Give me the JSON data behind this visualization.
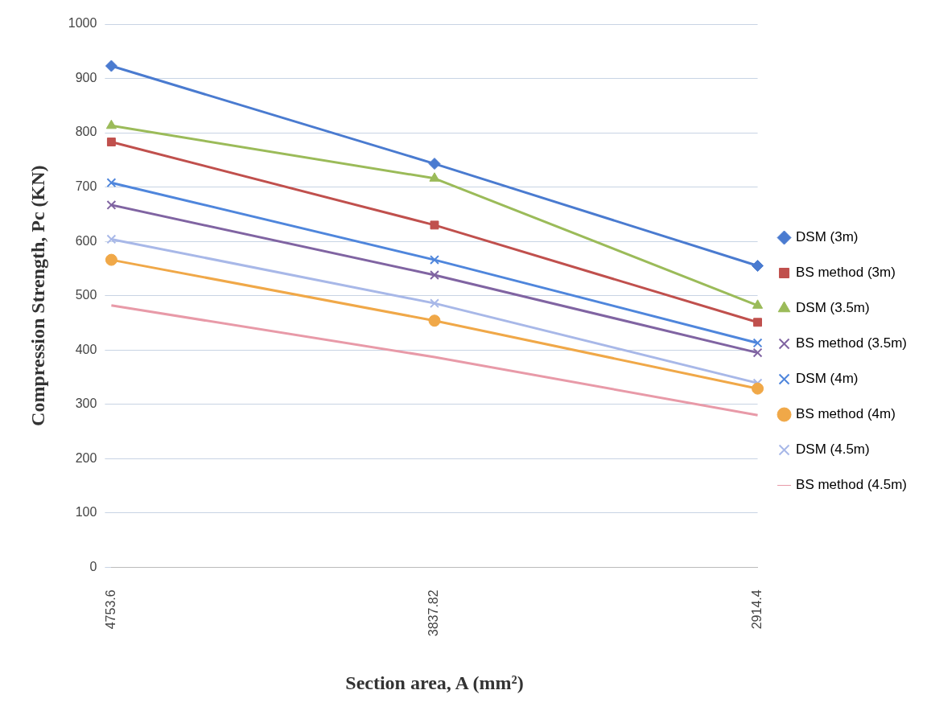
{
  "chart_data": {
    "type": "line",
    "xlabel": "Section area, A (mm²)",
    "ylabel": "Compression Strength, Pc (KN)",
    "categories": [
      "4753.6",
      "3837.82",
      "2914.4"
    ],
    "ylim": [
      0,
      1000
    ],
    "yticks": [
      0,
      100,
      200,
      300,
      400,
      500,
      600,
      700,
      800,
      900,
      1000
    ],
    "grid": "y",
    "legend": "right",
    "series": [
      {
        "name": "DSM (3m)",
        "color": "#4a7bd0",
        "marker": "diamond",
        "values": [
          923,
          743,
          555
        ]
      },
      {
        "name": "BS method (3m)",
        "color": "#c0504d",
        "marker": "square",
        "values": [
          783,
          630,
          451
        ]
      },
      {
        "name": "DSM (3.5m)",
        "color": "#9bbb59",
        "marker": "triangle",
        "values": [
          813,
          716,
          482
        ]
      },
      {
        "name": "BS method (3.5m)",
        "color": "#8064a2",
        "marker": "cross",
        "values": [
          667,
          538,
          395
        ]
      },
      {
        "name": "DSM (4m)",
        "color": "#4f86dc",
        "marker": "cross",
        "values": [
          708,
          566,
          413
        ]
      },
      {
        "name": "BS method (4m)",
        "color": "#f0a848",
        "marker": "circle",
        "values": [
          566,
          454,
          329
        ]
      },
      {
        "name": "DSM (4.5m)",
        "color": "#a8b8e8",
        "marker": "cross",
        "values": [
          604,
          486,
          339
        ]
      },
      {
        "name": "BS method (4.5m)",
        "color": "#e89aa8",
        "marker": "none",
        "values": [
          482,
          387,
          280
        ]
      }
    ]
  }
}
